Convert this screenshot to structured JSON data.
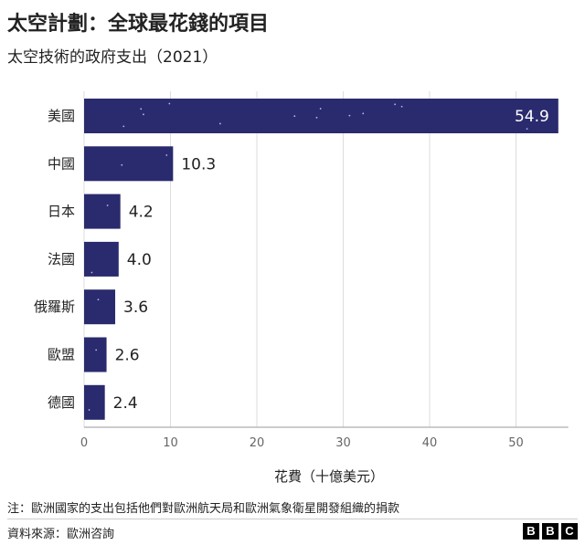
{
  "header": {
    "title": "太空計劃：全球最花錢的項目",
    "subtitle": "太空技術的政府支出（2021）"
  },
  "footer": {
    "note": "注：歐洲國家的支出包括他們對歐洲航天局和歐洲氣象衛星開發組織的捐款",
    "source": "資料來源：歐洲咨詢",
    "logo_letters": [
      "B",
      "B",
      "C"
    ]
  },
  "chart_data": {
    "type": "bar",
    "orientation": "horizontal",
    "categories": [
      "美國",
      "中國",
      "日本",
      "法國",
      "俄羅斯",
      "歐盟",
      "德國"
    ],
    "values": [
      54.9,
      10.3,
      4.2,
      4.0,
      3.6,
      2.6,
      2.4
    ],
    "value_labels": [
      "54.9",
      "10.3",
      "4.2",
      "4.0",
      "3.6",
      "2.6",
      "2.4"
    ],
    "xlabel": "花費（十億美元）",
    "xlim": [
      0,
      55
    ],
    "xticks": [
      0,
      10,
      20,
      30,
      40,
      50
    ],
    "bar_color": "#2a2a6e",
    "star_color": "#b8b8e8",
    "grid": true
  }
}
